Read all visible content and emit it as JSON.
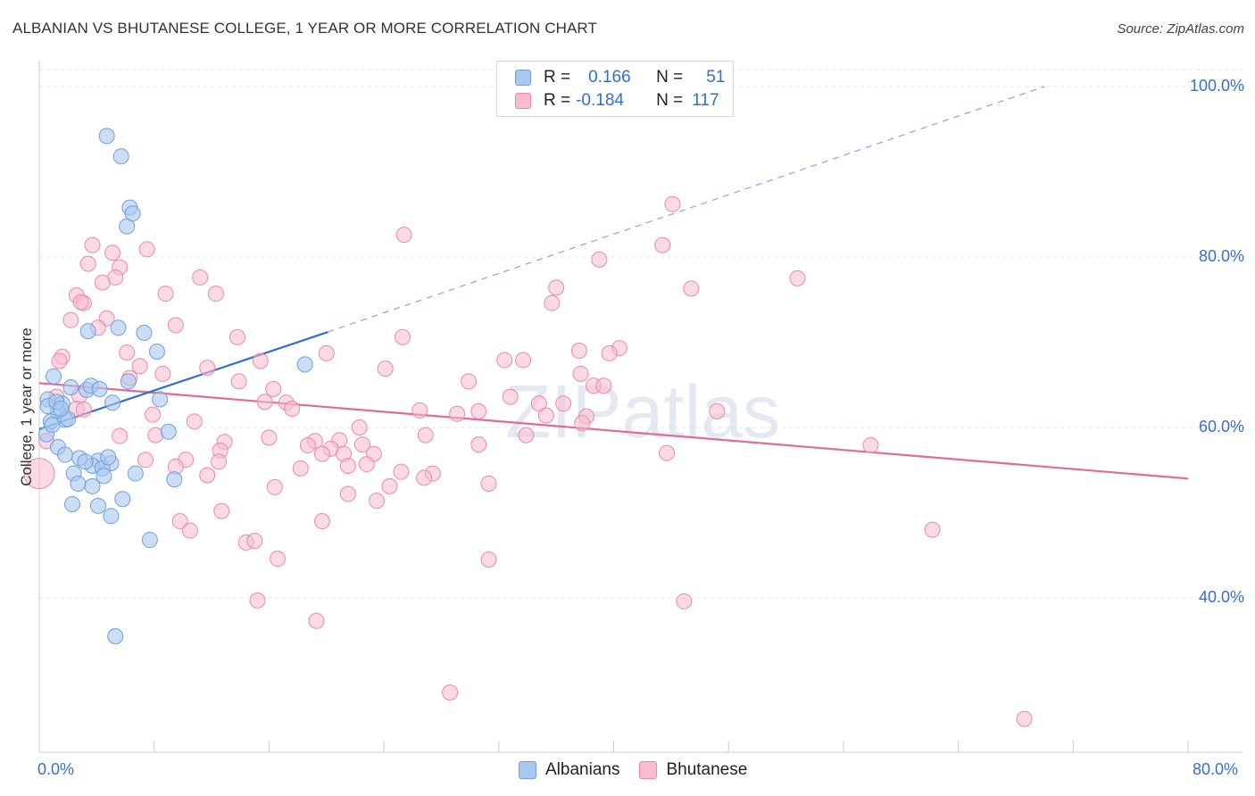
{
  "title": "ALBANIAN VS BHUTANESE COLLEGE, 1 YEAR OR MORE CORRELATION CHART",
  "source": "Source: ZipAtlas.com",
  "watermark": "ZIPatlas",
  "colors": {
    "blue_fill": "#a8c8f0",
    "blue_stroke": "#6f9fdc",
    "blue_line": "#2e6fd1",
    "pink_fill": "#f7bcd0",
    "pink_stroke": "#e88aaa",
    "pink_line": "#e06b96",
    "value_text": "#2f6fd0"
  },
  "legend": {
    "rows": [
      {
        "r_label": "R =",
        "r_value": "0.166",
        "n_label": "N =",
        "n_value": "51"
      },
      {
        "r_label": "R =",
        "r_value": "-0.184",
        "n_label": "N =",
        "n_value": "117"
      }
    ]
  },
  "bottom_legend": [
    {
      "name": "Albanians"
    },
    {
      "name": "Bhutanese"
    }
  ],
  "chart_data": {
    "type": "scatter",
    "title": "ALBANIAN VS BHUTANESE COLLEGE, 1 YEAR OR MORE CORRELATION CHART",
    "xlabel": "",
    "ylabel": "College, 1 year or more",
    "xlim": [
      0,
      80
    ],
    "ylim": [
      20,
      102
    ],
    "x_tick_labels": [
      "0.0%",
      "80.0%"
    ],
    "y_tick_labels": [
      "100.0%",
      "80.0%",
      "60.0%",
      "40.0%"
    ],
    "y_ticks": [
      100,
      80,
      60,
      40
    ],
    "series": [
      {
        "name": "Albanians",
        "r": 0.166,
        "n": 51,
        "trend": {
          "x0": 0,
          "y0": 59.8,
          "x1": 20.1,
          "y1": 71.2,
          "dash_to_x": 70,
          "dash_to_y": 100
        },
        "points": [
          [
            4.7,
            94.2
          ],
          [
            5.7,
            91.8
          ],
          [
            6.3,
            85.8
          ],
          [
            6.1,
            83.6
          ],
          [
            6.5,
            85.1
          ],
          [
            3.4,
            71.3
          ],
          [
            5.5,
            71.7
          ],
          [
            7.3,
            71.1
          ],
          [
            8.2,
            68.9
          ],
          [
            18.5,
            67.4
          ],
          [
            1.0,
            66.0
          ],
          [
            6.2,
            65.4
          ],
          [
            2.2,
            64.7
          ],
          [
            3.3,
            64.4
          ],
          [
            3.6,
            64.9
          ],
          [
            4.2,
            64.5
          ],
          [
            0.6,
            63.3
          ],
          [
            1.6,
            62.8
          ],
          [
            5.1,
            62.9
          ],
          [
            8.4,
            63.3
          ],
          [
            1.3,
            61.9
          ],
          [
            0.8,
            60.7
          ],
          [
            1.8,
            60.9
          ],
          [
            9.0,
            59.5
          ],
          [
            0.5,
            59.2
          ],
          [
            1.3,
            57.7
          ],
          [
            1.8,
            56.8
          ],
          [
            2.8,
            56.4
          ],
          [
            4.1,
            56.1
          ],
          [
            5.0,
            55.8
          ],
          [
            3.7,
            55.5
          ],
          [
            4.4,
            55.2
          ],
          [
            6.7,
            54.6
          ],
          [
            2.4,
            54.6
          ],
          [
            4.5,
            54.3
          ],
          [
            9.4,
            53.9
          ],
          [
            2.7,
            53.4
          ],
          [
            3.7,
            53.1
          ],
          [
            5.8,
            51.6
          ],
          [
            2.3,
            51.0
          ],
          [
            4.1,
            50.8
          ],
          [
            5.0,
            49.6
          ],
          [
            7.7,
            46.8
          ],
          [
            5.3,
            35.5
          ],
          [
            0.6,
            62.5
          ],
          [
            1.2,
            63.0
          ],
          [
            3.2,
            56.0
          ],
          [
            2.0,
            61.0
          ],
          [
            0.9,
            60.3
          ],
          [
            4.8,
            56.5
          ],
          [
            1.5,
            62.2
          ]
        ]
      },
      {
        "name": "Bhutanese",
        "r": -0.184,
        "n": 117,
        "trend": {
          "x0": 0,
          "y0": 65.2,
          "x1": 80,
          "y1": 54.0
        },
        "points": [
          [
            44.1,
            86.2
          ],
          [
            25.4,
            82.6
          ],
          [
            43.4,
            81.4
          ],
          [
            3.7,
            81.4
          ],
          [
            5.1,
            80.5
          ],
          [
            7.5,
            80.9
          ],
          [
            39.0,
            79.7
          ],
          [
            3.4,
            79.2
          ],
          [
            5.6,
            78.8
          ],
          [
            5.3,
            77.6
          ],
          [
            11.2,
            77.6
          ],
          [
            52.8,
            77.5
          ],
          [
            4.4,
            77.0
          ],
          [
            36.0,
            76.4
          ],
          [
            45.4,
            76.3
          ],
          [
            8.8,
            75.7
          ],
          [
            12.3,
            75.7
          ],
          [
            2.6,
            75.5
          ],
          [
            3.1,
            74.6
          ],
          [
            2.9,
            74.7
          ],
          [
            35.7,
            74.6
          ],
          [
            4.7,
            72.8
          ],
          [
            2.2,
            72.6
          ],
          [
            9.5,
            72.0
          ],
          [
            4.1,
            71.7
          ],
          [
            13.8,
            70.6
          ],
          [
            25.3,
            70.6
          ],
          [
            40.4,
            69.3
          ],
          [
            37.6,
            69.0
          ],
          [
            39.7,
            68.7
          ],
          [
            6.1,
            68.8
          ],
          [
            20.0,
            68.7
          ],
          [
            1.6,
            68.3
          ],
          [
            1.4,
            67.8
          ],
          [
            32.4,
            67.9
          ],
          [
            33.7,
            67.9
          ],
          [
            15.4,
            67.8
          ],
          [
            7.0,
            67.2
          ],
          [
            11.7,
            67.0
          ],
          [
            24.1,
            66.9
          ],
          [
            8.6,
            66.3
          ],
          [
            37.7,
            66.3
          ],
          [
            6.3,
            65.8
          ],
          [
            13.9,
            65.4
          ],
          [
            29.9,
            65.4
          ],
          [
            38.6,
            64.9
          ],
          [
            39.3,
            64.9
          ],
          [
            16.3,
            64.5
          ],
          [
            1.2,
            63.6
          ],
          [
            2.8,
            63.7
          ],
          [
            32.8,
            63.6
          ],
          [
            15.7,
            63.0
          ],
          [
            17.2,
            62.9
          ],
          [
            34.8,
            62.8
          ],
          [
            36.5,
            62.8
          ],
          [
            2.6,
            62.2
          ],
          [
            3.1,
            62.1
          ],
          [
            17.6,
            62.2
          ],
          [
            26.5,
            62.0
          ],
          [
            30.6,
            61.9
          ],
          [
            29.1,
            61.6
          ],
          [
            47.2,
            61.9
          ],
          [
            7.9,
            61.5
          ],
          [
            35.3,
            61.4
          ],
          [
            38.1,
            61.3
          ],
          [
            10.8,
            60.7
          ],
          [
            37.8,
            60.5
          ],
          [
            22.3,
            60.0
          ],
          [
            8.1,
            59.1
          ],
          [
            5.6,
            59.0
          ],
          [
            33.9,
            59.1
          ],
          [
            26.9,
            59.1
          ],
          [
            16.0,
            58.8
          ],
          [
            19.2,
            58.4
          ],
          [
            12.9,
            58.3
          ],
          [
            20.9,
            58.5
          ],
          [
            0.5,
            58.4
          ],
          [
            22.5,
            58.0
          ],
          [
            30.6,
            58.0
          ],
          [
            18.7,
            57.9
          ],
          [
            20.3,
            57.5
          ],
          [
            57.9,
            57.9
          ],
          [
            12.6,
            57.3
          ],
          [
            19.7,
            56.9
          ],
          [
            21.2,
            56.9
          ],
          [
            23.3,
            56.9
          ],
          [
            43.7,
            57.0
          ],
          [
            7.4,
            56.2
          ],
          [
            10.2,
            56.2
          ],
          [
            12.5,
            56.0
          ],
          [
            22.8,
            55.7
          ],
          [
            21.5,
            55.5
          ],
          [
            18.2,
            55.2
          ],
          [
            9.5,
            55.4
          ],
          [
            25.2,
            54.8
          ],
          [
            11.7,
            54.4
          ],
          [
            27.4,
            54.6
          ],
          [
            26.8,
            54.1
          ],
          [
            31.3,
            53.4
          ],
          [
            16.4,
            53.0
          ],
          [
            24.4,
            53.1
          ],
          [
            21.5,
            52.2
          ],
          [
            23.5,
            51.4
          ],
          [
            12.7,
            50.2
          ],
          [
            9.8,
            49.0
          ],
          [
            19.7,
            49.0
          ],
          [
            10.5,
            47.9
          ],
          [
            62.2,
            48.0
          ],
          [
            14.4,
            46.5
          ],
          [
            15.0,
            46.7
          ],
          [
            16.6,
            44.6
          ],
          [
            31.3,
            44.5
          ],
          [
            15.2,
            39.7
          ],
          [
            44.9,
            39.6
          ],
          [
            19.3,
            37.3
          ],
          [
            28.6,
            28.9
          ],
          [
            68.6,
            25.8
          ]
        ]
      }
    ]
  }
}
